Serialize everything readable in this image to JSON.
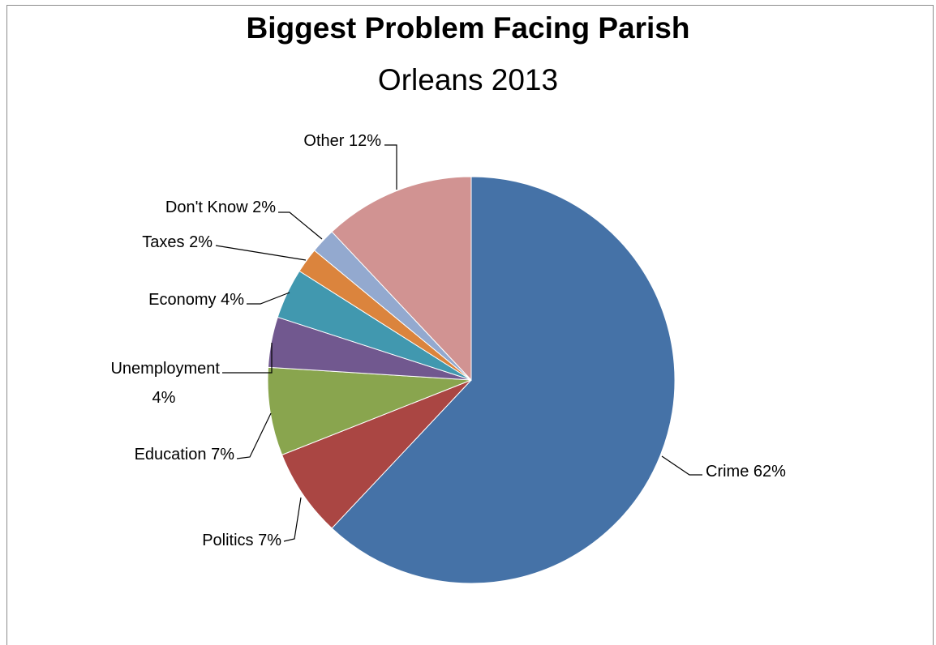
{
  "chart_data": {
    "type": "pie",
    "title": "Biggest Problem Facing Parish",
    "subtitle": "Orleans 2013",
    "slices": [
      {
        "label": "Crime",
        "value": 62,
        "display": "Crime 62%",
        "color": "#4572a7"
      },
      {
        "label": "Politics",
        "value": 7,
        "display": "Politics 7%",
        "color": "#aa4643"
      },
      {
        "label": "Education",
        "value": 7,
        "display": "Education 7%",
        "color": "#89a54e"
      },
      {
        "label": "Unemployment",
        "value": 4,
        "display": "Unemployment 4%",
        "color": "#71588f"
      },
      {
        "label": "Economy",
        "value": 4,
        "display": "Economy 4%",
        "color": "#4198af"
      },
      {
        "label": "Taxes",
        "value": 2,
        "display": "Taxes 2%",
        "color": "#db843d"
      },
      {
        "label": "Don't Know",
        "value": 2,
        "display": "Don't Know 2%",
        "color": "#93a9cf"
      },
      {
        "label": "Other",
        "value": 12,
        "display": "Other 12%",
        "color": "#d19392"
      }
    ]
  }
}
